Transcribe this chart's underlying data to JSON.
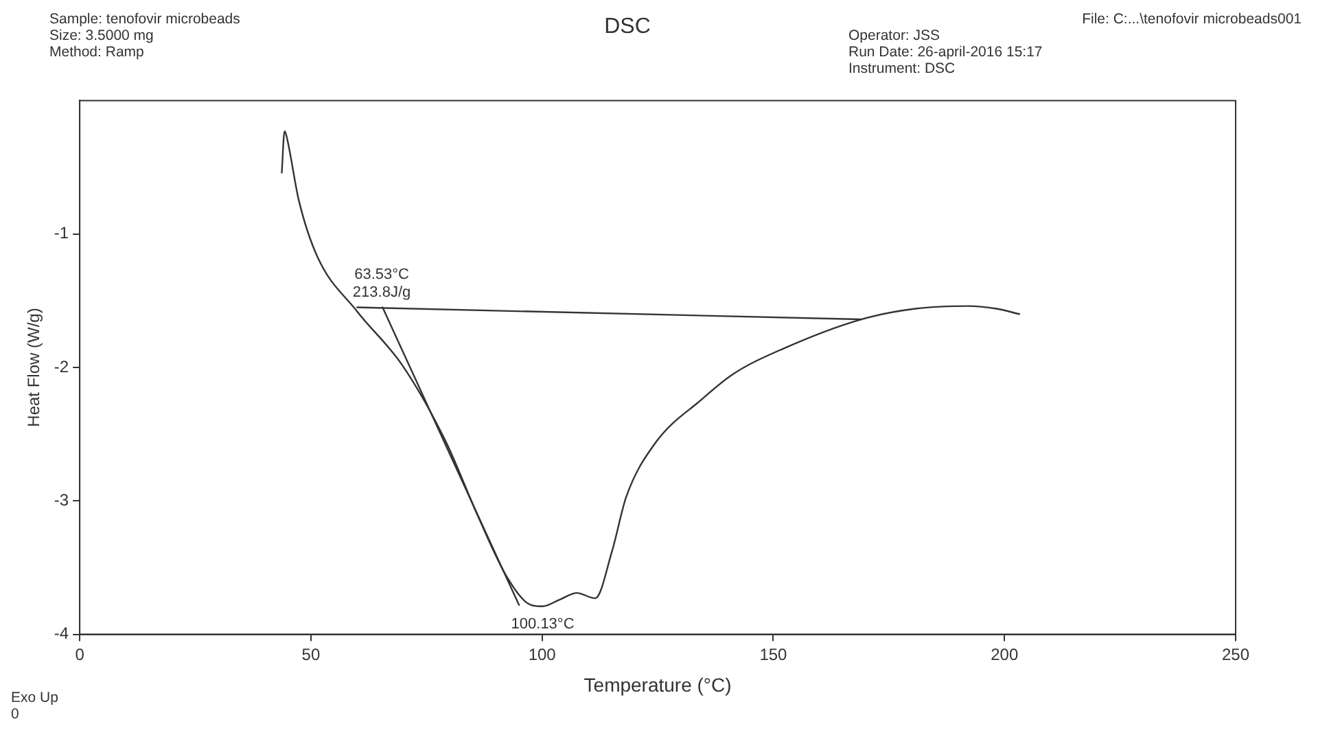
{
  "chart_data": {
    "type": "line",
    "title": "DSC",
    "xlabel": "Temperature (°C)",
    "ylabel": "Heat Flow (W/g)",
    "xlim": [
      0,
      250
    ],
    "xticks": [
      0,
      50,
      100,
      150,
      200,
      250
    ],
    "ylim": [
      -4,
      0
    ],
    "yticks": [
      -4,
      -3,
      -2,
      -1
    ],
    "grid": false,
    "legend": false,
    "marker": "none",
    "line_style": "solid",
    "series": [
      {
        "color": "#333333",
        "x": [
          43.7,
          44.3,
          44.6,
          47.4,
          51.4,
          60,
          69.9,
          79.1,
          86.2,
          92.4,
          97.6,
          100.1,
          103.8,
          107.5,
          111.5,
          115.1,
          118.2,
          124.4,
          134.5,
          141.3,
          152.1,
          169,
          180.7,
          192.1,
          198.3,
          203.2
        ],
        "values": [
          -0.54,
          -0.23,
          -0.25,
          -0.75,
          -1.17,
          -1.58,
          -1.99,
          -2.55,
          -3.12,
          -3.57,
          -3.78,
          -3.79,
          -3.74,
          -3.69,
          -3.73,
          -3.38,
          -2.97,
          -2.57,
          -2.24,
          -2.05,
          -1.86,
          -1.64,
          -1.56,
          -1.54,
          -1.56,
          -1.6
        ]
      },
      {
        "color": "#333333",
        "x": [
          60,
          169
        ],
        "values": [
          -1.55,
          -1.64
        ]
      },
      {
        "color": "#333333",
        "x": [
          65.5,
          95
        ],
        "values": [
          -1.55,
          -3.78
        ]
      }
    ],
    "annotations": [
      "Sample: tenofovir microbeads",
      "Size:  3.5000 mg",
      "Method: Ramp",
      "File: C:...\\tenofovir microbeads001",
      "Operator: JSS",
      "Run Date: 26-april-2016 15:17",
      "Instrument: DSC",
      "Exo Up",
      "0",
      {
        "text": "63.53°C\n213.8J/g",
        "x": 63.53,
        "y": -1.55
      },
      {
        "text": "100.13°C",
        "x": 100.13,
        "y": -3.79
      }
    ]
  }
}
